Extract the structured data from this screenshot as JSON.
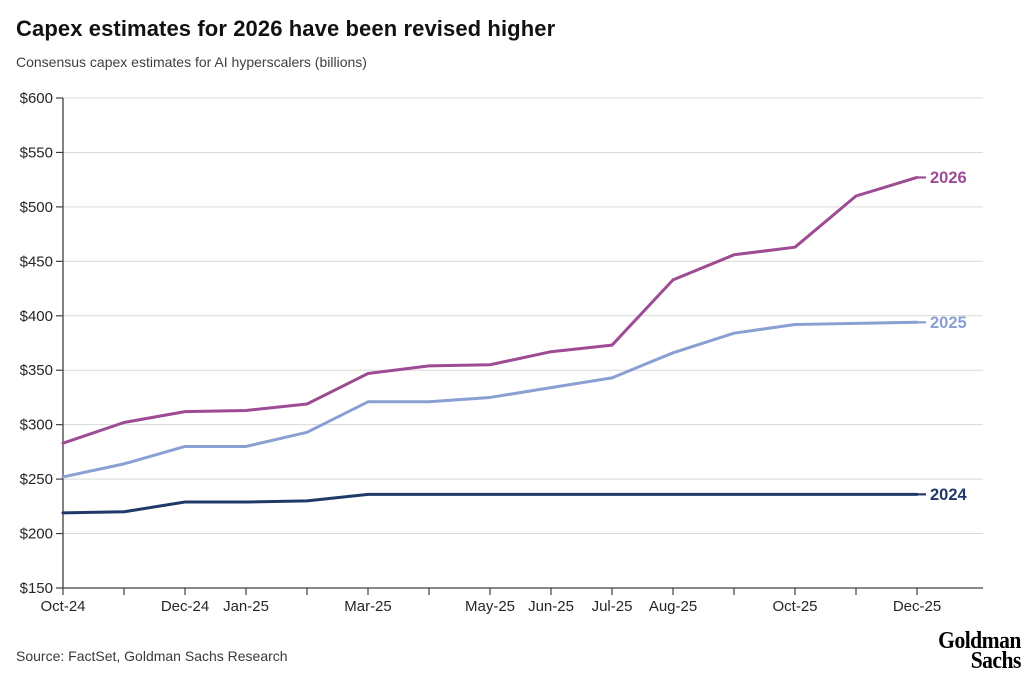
{
  "header": {
    "title": "Capex estimates for 2026 have been revised higher",
    "subtitle": "Consensus capex estimates for AI hyperscalers (billions)"
  },
  "footer": {
    "source": "Source: FactSet, Goldman Sachs Research",
    "logo_line1": "Goldman",
    "logo_line2": "Sachs"
  },
  "colors": {
    "title_text": "#111111",
    "subtitle_text": "#404040",
    "axis_line": "#404040",
    "axis_label_text": "#262626",
    "gridline": "#d9d9d9",
    "series_2026": "#9d4b94",
    "series_2025": "#8aa0d2",
    "series_2024": "#1f3a68"
  },
  "chart_data": {
    "type": "line",
    "title": "Capex estimates for 2026 have been revised higher",
    "subtitle": "Consensus capex estimates for AI hyperscalers (billions)",
    "xlabel": "",
    "ylabel": "",
    "yprefix": "$",
    "ylim": [
      150,
      600
    ],
    "ytick_step": 50,
    "ytick_labels": [
      "$600",
      "$550",
      "$500",
      "$450",
      "$400",
      "$350",
      "$300",
      "$250",
      "$200",
      "$150"
    ],
    "categories": [
      "Oct-24",
      "Nov-24",
      "Dec-24",
      "Jan-25",
      "Feb-25",
      "Mar-25",
      "Apr-25",
      "May-25",
      "Jun-25",
      "Jul-25",
      "Aug-25",
      "Sep-25",
      "Oct-25",
      "Nov-25",
      "Dec-25"
    ],
    "xtick_labels_shown": [
      "Oct-24",
      "Dec-24",
      "Jan-25",
      "Mar-25",
      "May-25",
      "Jun-25",
      "Jul-25",
      "Aug-25",
      "Oct-25",
      "Dec-25"
    ],
    "grid": "horizontal",
    "legend_position": "line-end-labels",
    "series": [
      {
        "name": "2026",
        "color": "#9d4b94",
        "values": [
          283,
          302,
          312,
          313,
          319,
          347,
          354,
          355,
          367,
          373,
          433,
          456,
          463,
          510,
          527
        ]
      },
      {
        "name": "2025",
        "color": "#8aa0d2",
        "values": [
          252,
          264,
          280,
          280,
          293,
          321,
          321,
          325,
          334,
          343,
          366,
          384,
          392,
          393,
          394
        ]
      },
      {
        "name": "2024",
        "color": "#1f3a68",
        "values": [
          219,
          220,
          229,
          229,
          230,
          236,
          236,
          236,
          236,
          236,
          236,
          236,
          236,
          236,
          236
        ]
      }
    ]
  }
}
